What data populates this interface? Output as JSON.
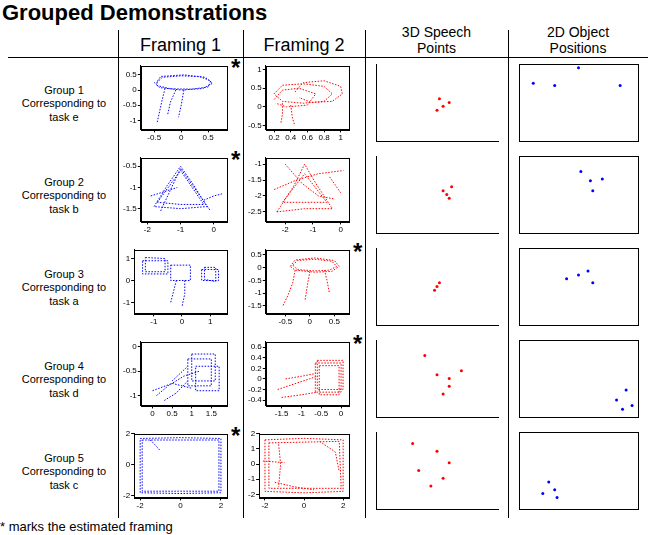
{
  "title": "Grouped Demonstrations",
  "columns": [
    "Framing 1",
    "Framing 2",
    "3D Speech Points",
    "2D Object Positions"
  ],
  "rows": [
    "Group 1 Corresponding to task e",
    "Group 2 Corresponding to task b",
    "Group 3 Corresponding to task a",
    "Group 4 Corresponding to task d",
    "Group 5 Corresponding to task c"
  ],
  "footnote": "* marks the estimated framing",
  "chart_data": [
    {
      "type": "line",
      "color": "#0000ff",
      "line_style": "dotted",
      "grid": false,
      "annotation": "*",
      "x": [
        -0.45,
        -0.35,
        0,
        0.35,
        0.55,
        0.5,
        0.2,
        -0.2,
        -0.45,
        -0.45,
        -0.38,
        0.05,
        0.45,
        0.58,
        0.4,
        0,
        -0.4,
        -0.5,
        null,
        -0.3,
        -0.35,
        -0.4,
        -0.45,
        null,
        -0.1,
        -0.2,
        -0.25,
        null,
        0.05,
        0,
        -0.05
      ],
      "values": [
        0.25,
        0.42,
        0.47,
        0.44,
        0.3,
        0.1,
        0.03,
        0.04,
        0.15,
        0.27,
        0.45,
        0.5,
        0.42,
        0.22,
        0.05,
        0,
        0.08,
        0.25,
        null,
        0.05,
        -0.3,
        -0.7,
        -1.1,
        null,
        0,
        -0.4,
        -0.8,
        null,
        0,
        -0.5,
        -0.9
      ],
      "xlim": [
        -0.75,
        0.85
      ],
      "xticks": [
        -0.5,
        0,
        0.5
      ],
      "ylim": [
        -1.3,
        0.8
      ],
      "yticks": [
        -1,
        -0.5,
        0,
        0.5
      ]
    },
    {
      "type": "line",
      "color": "#ff0000",
      "line_style": "dotted",
      "grid": false,
      "x": [
        0.2,
        0.3,
        0.55,
        0.8,
        0.9,
        0.8,
        0.55,
        0.3,
        0.2,
        null,
        0.45,
        0.55,
        0.8,
        1.0,
        1.02,
        0.9,
        0.65,
        0.5,
        null,
        0.2,
        0.3,
        0.5,
        0.7,
        0.6,
        0.35,
        0.22,
        null,
        0.3,
        0.3,
        0.28,
        null,
        0.4,
        0.42,
        0.45
      ],
      "values": [
        0.35,
        0.58,
        0.62,
        0.55,
        0.35,
        0.15,
        0.1,
        0.15,
        0.35,
        null,
        0.4,
        0.65,
        0.7,
        0.55,
        0.35,
        0.15,
        0.12,
        0.25,
        null,
        0.2,
        0.45,
        0.5,
        0.35,
        0.05,
        0,
        0.1,
        null,
        0.1,
        -0.2,
        -0.45,
        null,
        0.05,
        -0.3,
        -0.5
      ],
      "xlim": [
        0.1,
        1.1
      ],
      "xticks": [
        0.2,
        0.4,
        0.6,
        0.8,
        1
      ],
      "ylim": [
        -0.6,
        1.1
      ],
      "yticks": [
        -0.5,
        0,
        0.5,
        1
      ]
    },
    {
      "type": "scatter3d",
      "color": "#ff0000",
      "marker": "dot",
      "grid": false,
      "tick_labels": false,
      "x": [
        0.55,
        0.5,
        0.6,
        0.52
      ],
      "values": [
        0.45,
        0.4,
        0.5,
        0.55
      ],
      "xlim": [
        0,
        1
      ],
      "ylim": [
        0,
        1
      ]
    },
    {
      "type": "scatter",
      "color": "#0000ff",
      "marker": "dot",
      "grid": false,
      "tick_labels": false,
      "x": [
        0.12,
        0.5,
        0.3,
        0.85
      ],
      "values": [
        0.75,
        0.95,
        0.72,
        0.72
      ],
      "xlim": [
        0,
        1
      ],
      "ylim": [
        0,
        1
      ]
    },
    {
      "type": "line",
      "color": "#0000ff",
      "line_style": "dotted",
      "grid": false,
      "annotation": "*",
      "x": [
        -1.8,
        -1.4,
        -1,
        -0.6,
        -0.2,
        -1,
        -1.8,
        null,
        -1.7,
        -1,
        -0.3,
        -1,
        -1.7,
        null,
        -1.6,
        -1,
        -0.1,
        null,
        -0.3,
        0,
        0.25,
        null,
        -1.9,
        -1.5,
        -1.1
      ],
      "values": [
        -1.45,
        -0.95,
        -0.5,
        -0.95,
        -1.45,
        -1.5,
        -1.45,
        null,
        -1.35,
        -0.6,
        -1.4,
        -1.4,
        -1.35,
        null,
        -1.55,
        -0.55,
        -1.55,
        null,
        -1.3,
        -1.2,
        -1.15,
        null,
        -1.2,
        -1.1,
        -1
      ],
      "xlim": [
        -2.2,
        0.4
      ],
      "xticks": [
        -2,
        -1,
        0
      ],
      "ylim": [
        -1.8,
        -0.3
      ],
      "yticks": [
        -1.5,
        -1,
        -0.5
      ]
    },
    {
      "type": "line",
      "color": "#ff0000",
      "line_style": "dotted",
      "grid": false,
      "x": [
        -2.3,
        -1.7,
        -1.3,
        -0.9,
        -0.3,
        -1.3,
        -2.3,
        null,
        -2.1,
        -1.3,
        -0.5,
        -1.3,
        -2.1,
        null,
        -2.4,
        -1.6,
        -0.8,
        0.1,
        null,
        -2,
        -1.4,
        -0.8,
        -0.2,
        null,
        -0.4,
        0
      ],
      "values": [
        -2.5,
        -1.7,
        -1,
        -1.6,
        -2.4,
        -2.4,
        -2.5,
        null,
        -2.2,
        -1.3,
        -2.2,
        -2.2,
        -2.2,
        null,
        -1.8,
        -1.5,
        -1.3,
        -1.2,
        null,
        -1,
        -1.6,
        -2,
        -2.1,
        null,
        -1.4,
        -1.9
      ],
      "xlim": [
        -2.7,
        0.3
      ],
      "xticks": [
        -2,
        -1,
        0
      ],
      "ylim": [
        -2.8,
        -0.8
      ],
      "yticks": [
        -2.5,
        -2,
        -1.5,
        -1
      ]
    },
    {
      "type": "scatter3d",
      "color": "#ff0000",
      "marker": "dot",
      "grid": false,
      "tick_labels": false,
      "x": [
        0.55,
        0.6,
        0.58,
        0.62
      ],
      "values": [
        0.55,
        0.45,
        0.5,
        0.6
      ],
      "xlim": [
        0,
        1
      ],
      "ylim": [
        0,
        1
      ]
    },
    {
      "type": "scatter",
      "color": "#0000ff",
      "marker": "dot",
      "grid": false,
      "tick_labels": false,
      "x": [
        0.52,
        0.6,
        0.62,
        0.7
      ],
      "values": [
        0.8,
        0.68,
        0.55,
        0.7
      ],
      "xlim": [
        0,
        1
      ],
      "ylim": [
        0,
        1
      ]
    },
    {
      "type": "line",
      "color": "#0000ff",
      "line_style": "dotted",
      "grid": false,
      "x": [
        -1.4,
        -0.5,
        -0.5,
        -1.4,
        -1.4,
        null,
        -1.3,
        -0.6,
        -0.6,
        -1.3,
        -1.3,
        null,
        -0.4,
        0.3,
        0.3,
        -0.4,
        -0.4,
        null,
        0.7,
        1.3,
        1.3,
        0.7,
        0.7,
        null,
        0.8,
        1.2,
        1.2,
        0.8,
        0.8,
        null,
        -0.2,
        -0.3,
        -0.4,
        null,
        0.1,
        0.1,
        0
      ],
      "values": [
        0.9,
        0.9,
        0.3,
        0.3,
        0.9,
        null,
        1.05,
        1,
        0.4,
        0.4,
        1.05,
        null,
        0.7,
        0.7,
        0,
        0,
        0.7,
        null,
        0.5,
        0.5,
        0,
        0,
        0.5,
        null,
        0.6,
        0.6,
        -0.05,
        0.05,
        0.6,
        null,
        0,
        -0.5,
        -1,
        null,
        0,
        -0.6,
        -1.2
      ],
      "xlim": [
        -1.7,
        1.6
      ],
      "xticks": [
        -1,
        0,
        1
      ],
      "ylim": [
        -1.5,
        1.4
      ],
      "yticks": [
        -1,
        0,
        1
      ]
    },
    {
      "type": "line",
      "color": "#ff0000",
      "line_style": "dotted",
      "grid": false,
      "annotation": "*",
      "x": [
        -0.35,
        -0.25,
        0.1,
        0.45,
        0.55,
        0.4,
        0.1,
        -0.25,
        -0.35,
        null,
        -0.4,
        -0.3,
        0.1,
        0.5,
        0.6,
        0.45,
        0.1,
        -0.3,
        -0.4,
        null,
        -0.3,
        -0.35,
        -0.45,
        -0.55,
        null,
        0,
        -0.05,
        -0.1,
        null,
        0.3,
        0.35,
        0.4
      ],
      "values": [
        0.1,
        0.28,
        0.33,
        0.25,
        0.05,
        -0.1,
        -0.13,
        -0.08,
        0.1,
        null,
        0.05,
        0.3,
        0.38,
        0.28,
        0.05,
        -0.15,
        -0.18,
        -0.1,
        0.05,
        null,
        -0.1,
        -0.6,
        -1.1,
        -1.5,
        null,
        -0.15,
        -0.7,
        -1.3,
        null,
        -0.1,
        -0.5,
        -1
      ],
      "xlim": [
        -0.9,
        0.8
      ],
      "xticks": [
        -0.5,
        0,
        0.5
      ],
      "ylim": [
        -1.8,
        0.7
      ],
      "yticks": [
        -1.5,
        -1,
        -0.5,
        0,
        0.5
      ]
    },
    {
      "type": "scatter3d",
      "color": "#ff0000",
      "marker": "dot",
      "grid": false,
      "tick_labels": false,
      "x": [
        0.5,
        0.52,
        0.48
      ],
      "values": [
        0.5,
        0.55,
        0.45
      ],
      "xlim": [
        0,
        1
      ],
      "ylim": [
        0,
        1
      ]
    },
    {
      "type": "scatter",
      "color": "#0000ff",
      "marker": "dot",
      "grid": false,
      "tick_labels": false,
      "x": [
        0.4,
        0.5,
        0.62,
        0.58
      ],
      "values": [
        0.6,
        0.65,
        0.55,
        0.7
      ],
      "xlim": [
        0,
        1
      ],
      "ylim": [
        0,
        1
      ]
    },
    {
      "type": "line",
      "color": "#0000ff",
      "line_style": "dotted",
      "grid": false,
      "x": [
        0.9,
        1.5,
        1.5,
        0.9,
        0.9,
        null,
        1,
        1.6,
        1.6,
        1,
        1,
        null,
        1.1,
        1.7,
        1.7,
        1.1,
        1.1,
        null,
        0.1,
        0.4,
        0.8,
        1.2,
        null,
        0,
        0.5,
        1,
        null,
        0.3,
        0.6,
        0.9,
        null,
        0.5,
        0.7,
        0.9
      ],
      "values": [
        -0.25,
        -0.25,
        -0.8,
        -0.8,
        -0.25,
        null,
        -0.15,
        -0.15,
        -0.7,
        -0.7,
        -0.15,
        null,
        -0.4,
        -0.4,
        -0.9,
        -0.9,
        -0.4,
        null,
        -1,
        -0.8,
        -0.6,
        -0.5,
        null,
        -0.9,
        -0.75,
        -0.85,
        null,
        -1.1,
        -0.95,
        -0.7,
        null,
        -0.7,
        -0.55,
        -0.4
      ],
      "xlim": [
        -0.3,
        1.9
      ],
      "xticks": [
        0,
        0.5,
        1,
        1.5
      ],
      "ylim": [
        -1.2,
        0.1
      ],
      "yticks": [
        -1,
        -0.5,
        0
      ]
    },
    {
      "type": "line",
      "color": "#ff0000",
      "line_style": "dotted",
      "grid": false,
      "annotation": "*",
      "x": [
        -0.65,
        0,
        0,
        -0.65,
        -0.65,
        null,
        -0.6,
        0.05,
        0.05,
        -0.6,
        -0.6,
        null,
        -0.55,
        -0.05,
        -0.05,
        -0.55,
        -0.55,
        null,
        -1.6,
        -1.2,
        -0.8,
        -0.6,
        null,
        -1.5,
        -1,
        -0.6,
        null,
        -1.4,
        -1,
        -0.65
      ],
      "values": [
        0.3,
        0.3,
        -0.25,
        -0.25,
        0.3,
        null,
        0.35,
        0.35,
        -0.2,
        -0.2,
        0.35,
        null,
        0.25,
        0.25,
        -0.3,
        -0.3,
        0.25,
        null,
        -0.2,
        -0.1,
        0,
        0.05,
        null,
        -0.35,
        -0.3,
        -0.25,
        null,
        0,
        0.05,
        0.1
      ],
      "xlim": [
        -1.9,
        0.2
      ],
      "xticks": [
        -1.5,
        -1,
        -0.5,
        0
      ],
      "ylim": [
        -0.5,
        0.7
      ],
      "yticks": [
        -0.4,
        -0.2,
        0,
        0.2,
        0.4,
        0.6
      ]
    },
    {
      "type": "scatter3d",
      "color": "#ff0000",
      "marker": "dot",
      "grid": false,
      "tick_labels": false,
      "x": [
        0.4,
        0.7,
        0.6,
        0.6,
        0.55,
        0.5
      ],
      "values": [
        0.8,
        0.6,
        0.5,
        0.4,
        0.3,
        0.55
      ],
      "xlim": [
        0,
        1
      ],
      "ylim": [
        0,
        1
      ]
    },
    {
      "type": "scatter",
      "color": "#0000ff",
      "marker": "dot",
      "grid": false,
      "tick_labels": false,
      "x": [
        0.9,
        0.87,
        0.95,
        0.82
      ],
      "values": [
        0.35,
        0.1,
        0.15,
        0.22
      ],
      "xlim": [
        0,
        1
      ],
      "ylim": [
        0,
        1
      ]
    },
    {
      "type": "line",
      "color": "#0000ff",
      "line_style": "dotted",
      "grid": false,
      "annotation": "*",
      "x": [
        -2,
        0,
        2,
        2,
        2,
        0,
        -2,
        -2,
        -2,
        null,
        -1.9,
        1.9,
        1.9,
        -1.9,
        -1.9,
        null,
        -1.5,
        -1.2,
        -1
      ],
      "values": [
        1.7,
        1.75,
        1.7,
        0,
        -1.8,
        -1.85,
        -1.8,
        0,
        1.7,
        null,
        1.6,
        1.6,
        -1.7,
        -1.7,
        1.6,
        null,
        1.6,
        1.2,
        0.9
      ],
      "xlim": [
        -2.3,
        2.3
      ],
      "xticks": [
        -2,
        0,
        2
      ],
      "ylim": [
        -2.1,
        2
      ],
      "yticks": [
        -2,
        0,
        2
      ]
    },
    {
      "type": "line",
      "color": "#ff0000",
      "line_style": "dotted",
      "grid": false,
      "x": [
        -2,
        0,
        2,
        2,
        0,
        -2,
        -2,
        null,
        -1.8,
        1.8,
        1.9,
        -1.8,
        -1.8,
        null,
        -1.3,
        -1.2,
        -1.3,
        null,
        -2.1,
        -1,
        null,
        0.8,
        1.6,
        1.8,
        null,
        -1.5,
        -0.5,
        0.5
      ],
      "values": [
        1.6,
        1.7,
        1.6,
        -1.8,
        -1.9,
        -1.8,
        1.6,
        null,
        1.4,
        1.5,
        -1.6,
        -1.6,
        1.4,
        null,
        1.3,
        0,
        -1.5,
        null,
        0.2,
        0.1,
        null,
        1.5,
        0.8,
        -0.5,
        null,
        -1.2,
        -1.5,
        -1.7
      ],
      "xlim": [
        -2.3,
        2.3
      ],
      "xticks": [
        -2,
        0,
        2
      ],
      "ylim": [
        -2.2,
        2
      ],
      "yticks": [
        -2,
        -1,
        0,
        1,
        2
      ]
    },
    {
      "type": "scatter3d",
      "color": "#ff0000",
      "marker": "dot",
      "grid": false,
      "tick_labels": false,
      "x": [
        0.3,
        0.5,
        0.6,
        0.55,
        0.35,
        0.45
      ],
      "values": [
        0.85,
        0.75,
        0.6,
        0.4,
        0.5,
        0.3
      ],
      "xlim": [
        0,
        1
      ],
      "ylim": [
        0,
        1
      ]
    },
    {
      "type": "scatter",
      "color": "#0000ff",
      "marker": "dot",
      "grid": false,
      "tick_labels": false,
      "x": [
        0.25,
        0.3,
        0.2,
        0.32
      ],
      "values": [
        0.35,
        0.25,
        0.2,
        0.15
      ],
      "xlim": [
        0,
        1
      ],
      "ylim": [
        0,
        1
      ]
    }
  ]
}
